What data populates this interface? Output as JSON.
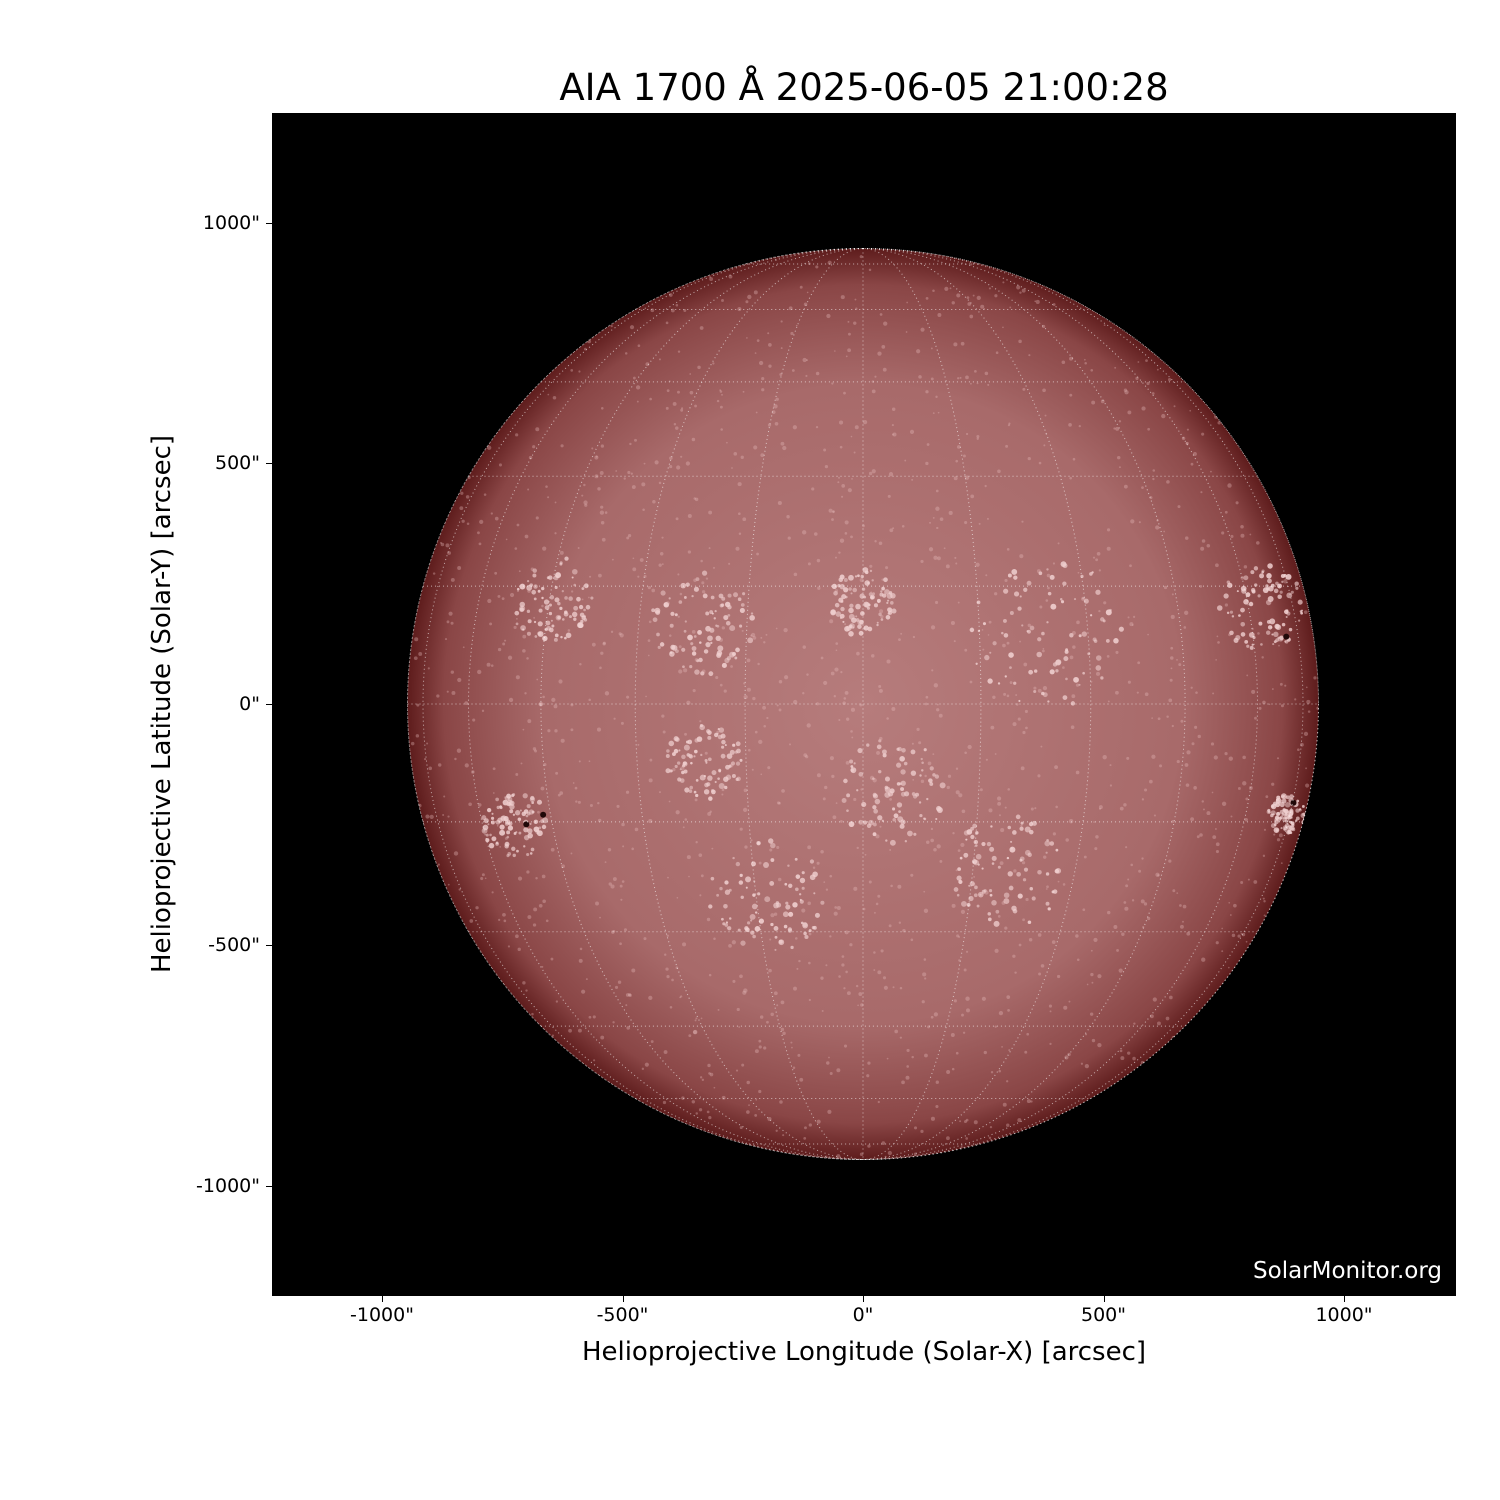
{
  "title": "AIA 1700 Å 2025-06-05 21:00:28",
  "watermark": "SolarMonitor.org",
  "xlabel": "Helioprojective Longitude (Solar-X) [arcsec]",
  "ylabel": "Helioprojective Latitude (Solar-Y) [arcsec]",
  "xticks": [
    {
      "value": -1000,
      "label": "-1000\""
    },
    {
      "value": -500,
      "label": "-500\""
    },
    {
      "value": 0,
      "label": "0\""
    },
    {
      "value": 500,
      "label": "500\""
    },
    {
      "value": 1000,
      "label": "1000\""
    }
  ],
  "yticks": [
    {
      "value": 1000,
      "label": "1000\""
    },
    {
      "value": 500,
      "label": "500\""
    },
    {
      "value": 0,
      "label": "0\""
    },
    {
      "value": -500,
      "label": "-500\""
    },
    {
      "value": -1000,
      "label": "-1000\""
    }
  ],
  "xlim": [
    -1230,
    1230
  ],
  "ylim": [
    -1230,
    1230
  ],
  "solar_radius_arcsec": 947,
  "grid_spacing_deg": 15,
  "colors": {
    "disk_center": "#b67c7c",
    "disk_limb": "#5e1c1c",
    "background": "#000000",
    "grid": "#ffffff"
  }
}
